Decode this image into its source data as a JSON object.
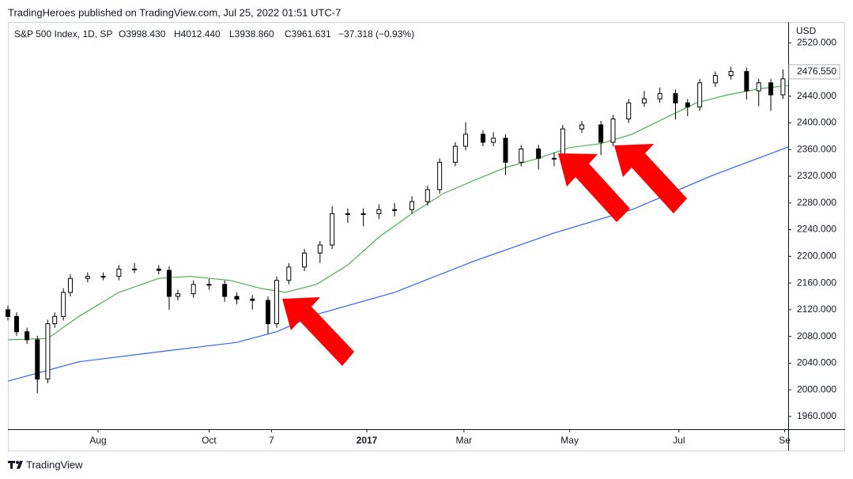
{
  "header": {
    "text": "TradingHeroes published on TradingView.com, Jul 25, 2022 01:51 UTC-7"
  },
  "footer": {
    "brand": "TradingView"
  },
  "chart_data": {
    "type": "candlestick",
    "symbol": "S&P 500 Index, 1D, SP",
    "ohlc_open": "O3998.430",
    "ohlc_high": "H4012.440",
    "ohlc_low": "L3938.860",
    "ohlc_close": "C3961.631",
    "ohlc_change": "−37.318 (−0.93%)",
    "currency": "USD",
    "up_color": "#ffffff",
    "down_color": "#000000",
    "wick_color": "#000000",
    "grid": false,
    "xlim": [
      0,
      450
    ],
    "xticks": [
      {
        "value": 52,
        "label": "Aug"
      },
      {
        "value": 116,
        "label": "Oct"
      },
      {
        "value": 152,
        "label": "7"
      },
      {
        "value": 207,
        "label": "2017"
      },
      {
        "value": 263,
        "label": "Mar"
      },
      {
        "value": 324,
        "label": "May"
      },
      {
        "value": 387,
        "label": "Jul"
      },
      {
        "value": 448,
        "label": "Se"
      }
    ],
    "ylim": [
      1941,
      2551
    ],
    "yticks": [
      {
        "value": 1960,
        "label": "1960.000"
      },
      {
        "value": 2000,
        "label": "2000.000"
      },
      {
        "value": 2040,
        "label": "2040.000"
      },
      {
        "value": 2080,
        "label": "2080.000"
      },
      {
        "value": 2120,
        "label": "2120.000"
      },
      {
        "value": 2160,
        "label": "2160.000"
      },
      {
        "value": 2200,
        "label": "2200.000"
      },
      {
        "value": 2240,
        "label": "2240.000"
      },
      {
        "value": 2280,
        "label": "2280.000"
      },
      {
        "value": 2320,
        "label": "2320.000"
      },
      {
        "value": 2360,
        "label": "2360.000"
      },
      {
        "value": 2400,
        "label": "2400.000"
      },
      {
        "value": 2440,
        "label": "2440.000"
      },
      {
        "value": 2480,
        "label": "2480.000"
      },
      {
        "value": 2520,
        "label": "2520.000"
      }
    ],
    "last_price": {
      "value": 2476.55,
      "label": "2476.550"
    },
    "x": [
      0,
      5,
      11,
      17,
      23,
      27,
      32,
      36,
      46,
      55,
      64,
      73,
      87,
      93,
      98,
      107,
      116,
      125,
      132,
      141,
      150,
      155,
      162,
      171,
      180,
      187,
      196,
      205,
      214,
      223,
      233,
      242,
      249,
      258,
      264,
      274,
      280,
      287,
      296,
      306,
      315,
      320,
      331,
      342,
      349,
      358,
      367,
      376,
      385,
      392,
      399,
      408,
      417,
      426,
      433,
      440,
      447
    ],
    "open": [
      2120,
      2110,
      2087,
      2075,
      2016,
      2099,
      2110,
      2146,
      2167,
      2170,
      2170,
      2181,
      2181,
      2179,
      2140,
      2144,
      2158,
      2158,
      2140,
      2136,
      2134,
      2099,
      2164,
      2184,
      2205,
      2217,
      2264,
      2264,
      2264,
      2270,
      2270,
      2282,
      2300,
      2341,
      2365,
      2383,
      2371,
      2377,
      2341,
      2361,
      2347,
      2347,
      2391,
      2397,
      2371,
      2406,
      2430,
      2436,
      2444,
      2430,
      2424,
      2460,
      2471,
      2477,
      2448,
      2460,
      2442
    ],
    "high": [
      2126,
      2116,
      2093,
      2081,
      2105,
      2116,
      2152,
      2173,
      2176,
      2176,
      2187,
      2190,
      2187,
      2185,
      2150,
      2164,
      2166,
      2164,
      2146,
      2142,
      2140,
      2170,
      2190,
      2211,
      2223,
      2275,
      2272,
      2272,
      2278,
      2280,
      2290,
      2306,
      2347,
      2371,
      2401,
      2389,
      2386,
      2383,
      2367,
      2367,
      2356,
      2397,
      2403,
      2403,
      2412,
      2436,
      2448,
      2453,
      2450,
      2436,
      2466,
      2477,
      2484,
      2483,
      2466,
      2466,
      2480
    ],
    "low": [
      2104,
      2081,
      2069,
      1995,
      2010,
      2093,
      2104,
      2140,
      2161,
      2164,
      2164,
      2175,
      2173,
      2120,
      2134,
      2138,
      2150,
      2132,
      2128,
      2120,
      2084,
      2093,
      2158,
      2178,
      2190,
      2211,
      2250,
      2245,
      2256,
      2260,
      2264,
      2276,
      2294,
      2335,
      2359,
      2365,
      2365,
      2322,
      2335,
      2330,
      2335,
      2341,
      2385,
      2352,
      2365,
      2400,
      2424,
      2430,
      2405,
      2410,
      2418,
      2454,
      2465,
      2435,
      2425,
      2418,
      2436
    ],
    "close": [
      2110,
      2087,
      2075,
      2016,
      2099,
      2110,
      2146,
      2167,
      2170,
      2170,
      2181,
      2181,
      2179,
      2140,
      2144,
      2158,
      2158,
      2140,
      2136,
      2134,
      2099,
      2164,
      2184,
      2205,
      2217,
      2264,
      2264,
      2264,
      2270,
      2270,
      2282,
      2300,
      2341,
      2365,
      2383,
      2371,
      2377,
      2341,
      2361,
      2347,
      2347,
      2391,
      2397,
      2371,
      2406,
      2430,
      2436,
      2444,
      2430,
      2424,
      2460,
      2471,
      2477,
      2448,
      2460,
      2442,
      2466
    ],
    "lines": [
      {
        "color": "#4caf50",
        "x": [
          0,
          23,
          41,
          64,
          87,
          105,
          128,
          146,
          160,
          178,
          196,
          214,
          233,
          251,
          269,
          287,
          306,
          324,
          342,
          360,
          378,
          397,
          415,
          433,
          450
        ],
        "values": [
          2075,
          2077,
          2110,
          2146,
          2167,
          2170,
          2164,
          2152,
          2146,
          2158,
          2187,
          2229,
          2264,
          2294,
          2314,
          2333,
          2347,
          2363,
          2369,
          2383,
          2406,
          2430,
          2442,
          2451,
          2456
        ]
      },
      {
        "color": "#2962ff",
        "x": [
          0,
          41,
          87,
          132,
          155,
          178,
          223,
          269,
          315,
          360,
          406,
          450
        ],
        "values": [
          2013,
          2042,
          2057,
          2071,
          2087,
          2113,
          2146,
          2193,
          2235,
          2270,
          2321,
          2364
        ]
      }
    ]
  }
}
